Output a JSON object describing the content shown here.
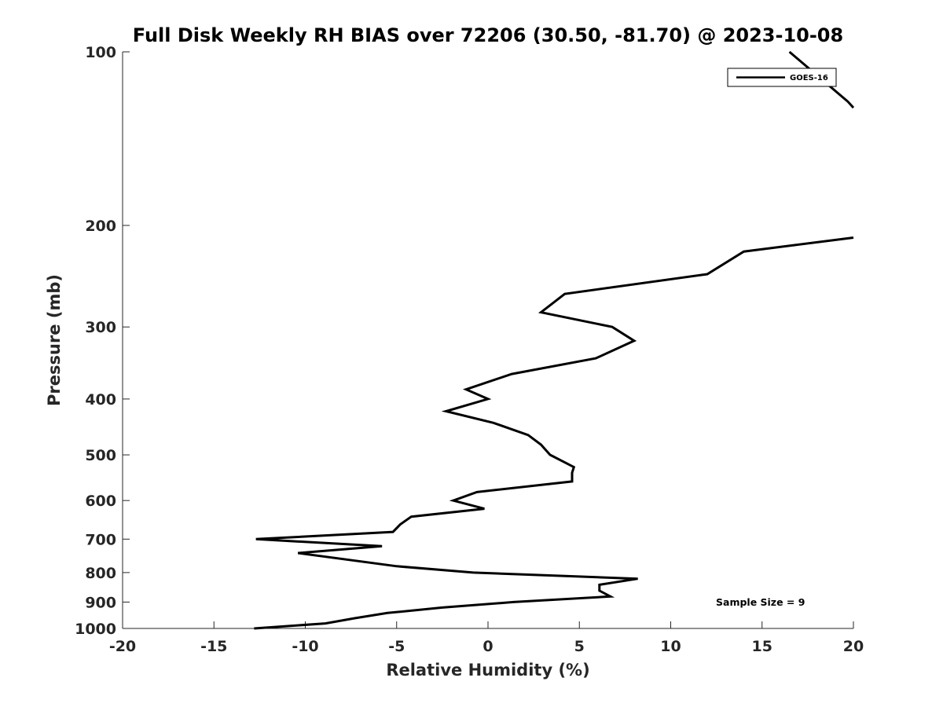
{
  "chart_data": {
    "type": "line",
    "title": "Full Disk Weekly RH BIAS over 72206 (30.50, -81.70) @ 2023-10-08",
    "xlabel": "Relative Humidity (%)",
    "ylabel": "Pressure (mb)",
    "xlim": [
      -20,
      20
    ],
    "ylim": [
      100,
      1000
    ],
    "y_scale": "log",
    "y_reversed": true,
    "grid": false,
    "legend_position": "top-right",
    "x_ticks": [
      -20,
      -15,
      -10,
      -5,
      0,
      5,
      10,
      15,
      20
    ],
    "y_ticks": [
      100,
      200,
      300,
      400,
      500,
      600,
      700,
      800,
      900,
      1000
    ],
    "annotation": "Sample Size = 9",
    "series": [
      {
        "name": "GOES-16",
        "color": "#000000",
        "points": [
          {
            "x": 16.5,
            "y": 100
          },
          {
            "x": 19.7,
            "y": 122
          },
          {
            "x": 20.0,
            "y": 125
          },
          {
            "x": null,
            "y": null
          },
          {
            "x": 20.0,
            "y": 210
          },
          {
            "x": 14.0,
            "y": 222
          },
          {
            "x": 12.0,
            "y": 243
          },
          {
            "x": 4.2,
            "y": 263
          },
          {
            "x": 2.9,
            "y": 283
          },
          {
            "x": 6.8,
            "y": 300
          },
          {
            "x": 8.0,
            "y": 317
          },
          {
            "x": 5.9,
            "y": 340
          },
          {
            "x": 1.3,
            "y": 362
          },
          {
            "x": -1.2,
            "y": 385
          },
          {
            "x": 0.0,
            "y": 400
          },
          {
            "x": -2.3,
            "y": 420
          },
          {
            "x": 0.3,
            "y": 440
          },
          {
            "x": 2.2,
            "y": 462
          },
          {
            "x": 2.9,
            "y": 480
          },
          {
            "x": 3.4,
            "y": 500
          },
          {
            "x": 4.7,
            "y": 525
          },
          {
            "x": 4.6,
            "y": 537
          },
          {
            "x": 4.6,
            "y": 556
          },
          {
            "x": -0.6,
            "y": 580
          },
          {
            "x": -1.9,
            "y": 600
          },
          {
            "x": -0.2,
            "y": 620
          },
          {
            "x": -4.2,
            "y": 640
          },
          {
            "x": -4.8,
            "y": 660
          },
          {
            "x": -5.2,
            "y": 680
          },
          {
            "x": -12.7,
            "y": 700
          },
          {
            "x": -5.8,
            "y": 720
          },
          {
            "x": -10.4,
            "y": 740
          },
          {
            "x": -5.0,
            "y": 780
          },
          {
            "x": -0.8,
            "y": 800
          },
          {
            "x": 8.2,
            "y": 820
          },
          {
            "x": 6.1,
            "y": 840
          },
          {
            "x": 6.1,
            "y": 860
          },
          {
            "x": 6.7,
            "y": 880
          },
          {
            "x": 1.4,
            "y": 900
          },
          {
            "x": -2.5,
            "y": 920
          },
          {
            "x": -5.5,
            "y": 940
          },
          {
            "x": -7.3,
            "y": 960
          },
          {
            "x": -8.9,
            "y": 980
          },
          {
            "x": -12.8,
            "y": 1000
          }
        ]
      }
    ]
  }
}
